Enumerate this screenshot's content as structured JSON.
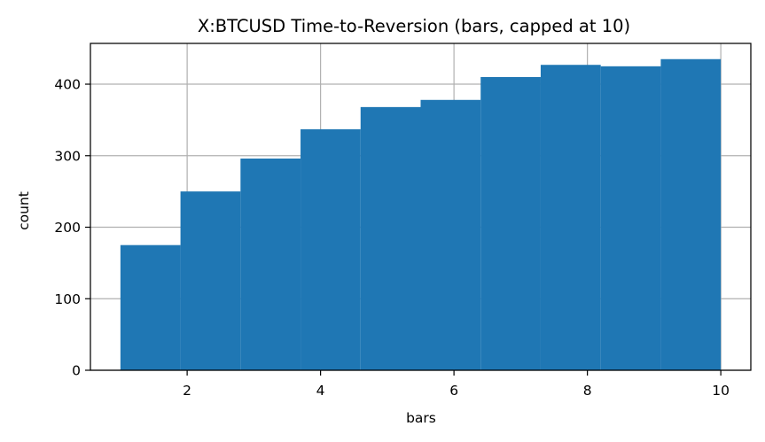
{
  "chart_data": {
    "type": "bar",
    "title": "X:BTCUSD Time-to-Reversion (bars, capped at 10)",
    "xlabel": "bars",
    "ylabel": "count",
    "bin_edges": [
      1.0,
      1.9,
      2.8,
      3.7,
      4.6,
      5.5,
      6.4,
      7.3,
      8.2,
      9.1,
      10.0
    ],
    "values": [
      175,
      250,
      296,
      337,
      368,
      378,
      410,
      427,
      425,
      435
    ],
    "xlim": [
      0.55,
      10.45
    ],
    "ylim": [
      0,
      457
    ],
    "xticks": [
      2,
      4,
      6,
      8,
      10
    ],
    "yticks": [
      0,
      100,
      200,
      300,
      400
    ],
    "grid": true,
    "bar_color": "#1f77b4",
    "grid_color": "#b0b0b0"
  }
}
